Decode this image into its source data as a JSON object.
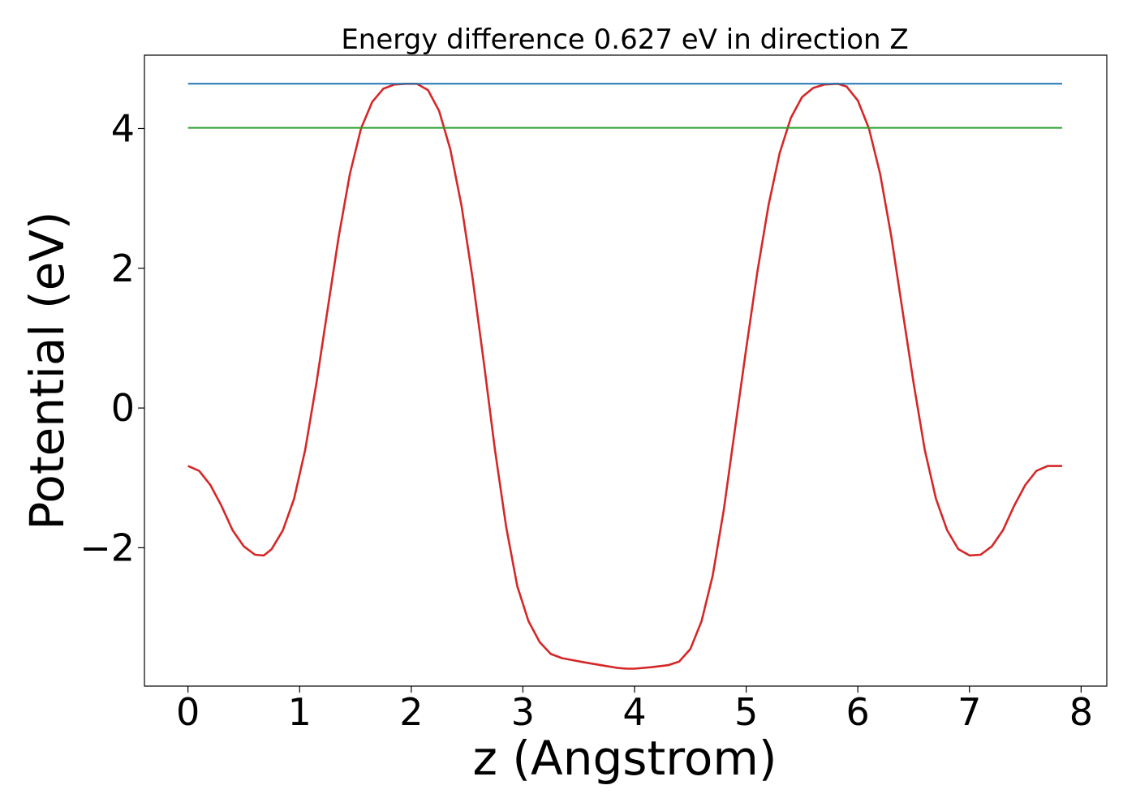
{
  "chart_data": {
    "type": "line",
    "title": "Energy difference 0.627 eV in direction Z",
    "xlabel": "z (Angstrom)",
    "ylabel": "Potential (eV)",
    "xlim": [
      -0.39,
      8.23
    ],
    "ylim": [
      -3.98,
      5.05
    ],
    "xticks": [
      0,
      1,
      2,
      3,
      4,
      5,
      6,
      7,
      8
    ],
    "xtick_labels": [
      "0",
      "1",
      "2",
      "3",
      "4",
      "5",
      "6",
      "7",
      "8"
    ],
    "yticks": [
      -2,
      0,
      2,
      4
    ],
    "ytick_labels": [
      "−2",
      "0",
      "2",
      "4"
    ],
    "grid": false,
    "legend": "none",
    "series": [
      {
        "color": "#d62728",
        "x": [
          0.0,
          0.1,
          0.2,
          0.3,
          0.4,
          0.5,
          0.6,
          0.68,
          0.75,
          0.85,
          0.95,
          1.05,
          1.15,
          1.25,
          1.35,
          1.45,
          1.55,
          1.65,
          1.75,
          1.85,
          1.95,
          2.05,
          2.15,
          2.25,
          2.35,
          2.45,
          2.55,
          2.65,
          2.75,
          2.85,
          2.95,
          3.05,
          3.15,
          3.25,
          3.35,
          3.45,
          3.55,
          3.7,
          3.85,
          3.93,
          4.0,
          4.15,
          4.3,
          4.4,
          4.5,
          4.6,
          4.7,
          4.8,
          4.9,
          5.0,
          5.1,
          5.2,
          5.3,
          5.4,
          5.5,
          5.6,
          5.7,
          5.82,
          5.9,
          6.0,
          6.1,
          6.2,
          6.3,
          6.4,
          6.5,
          6.6,
          6.7,
          6.8,
          6.9,
          7.0,
          7.1,
          7.2,
          7.3,
          7.4,
          7.5,
          7.6,
          7.7,
          7.8,
          7.83
        ],
        "y": [
          -0.83,
          -0.9,
          -1.1,
          -1.4,
          -1.75,
          -1.98,
          -2.1,
          -2.11,
          -2.02,
          -1.75,
          -1.3,
          -0.6,
          0.35,
          1.4,
          2.45,
          3.35,
          4.0,
          4.38,
          4.57,
          4.63,
          4.64,
          4.64,
          4.55,
          4.25,
          3.7,
          2.9,
          1.85,
          0.65,
          -0.6,
          -1.7,
          -2.55,
          -3.05,
          -3.35,
          -3.52,
          -3.58,
          -3.61,
          -3.64,
          -3.68,
          -3.72,
          -3.73,
          -3.73,
          -3.71,
          -3.68,
          -3.63,
          -3.45,
          -3.05,
          -2.4,
          -1.45,
          -0.3,
          0.85,
          1.95,
          2.9,
          3.65,
          4.15,
          4.45,
          4.58,
          4.63,
          4.64,
          4.6,
          4.4,
          4.0,
          3.35,
          2.45,
          1.4,
          0.35,
          -0.6,
          -1.3,
          -1.75,
          -2.02,
          -2.11,
          -2.1,
          -1.98,
          -1.75,
          -1.4,
          -1.1,
          -0.9,
          -0.83,
          -0.83,
          -0.83
        ]
      },
      {
        "color": "#1f77b4",
        "x": [
          0.0,
          7.83
        ],
        "y": [
          4.64,
          4.64
        ]
      },
      {
        "color": "#2ca02c",
        "x": [
          0.0,
          7.83
        ],
        "y": [
          4.01,
          4.01
        ]
      }
    ]
  }
}
